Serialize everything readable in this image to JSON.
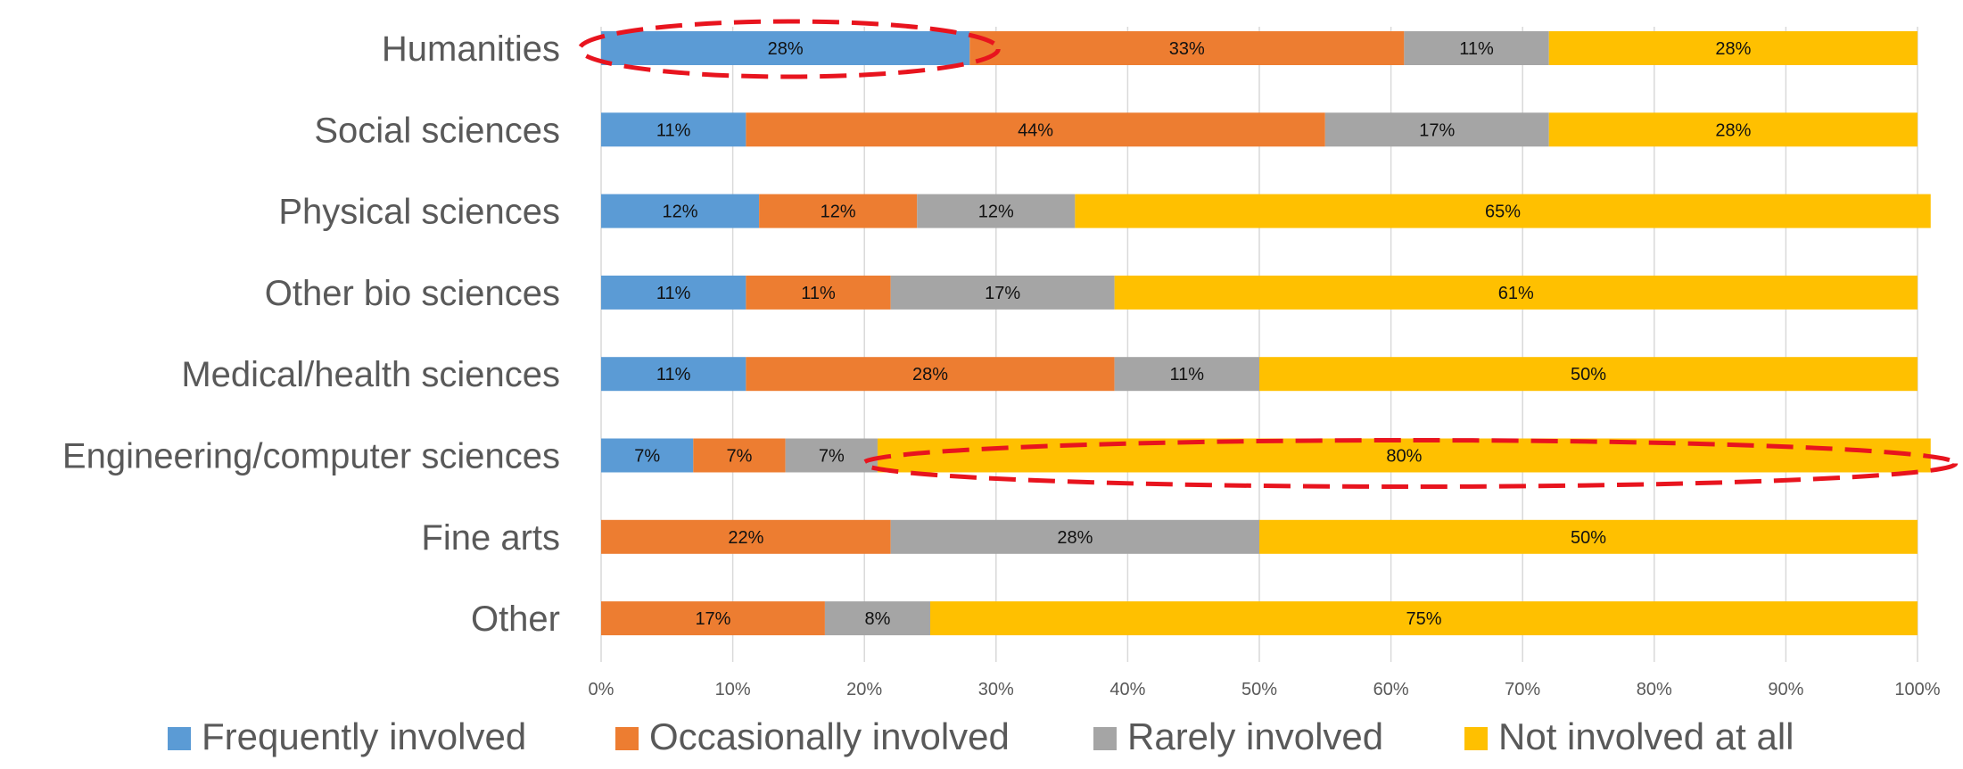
{
  "chart_data": {
    "type": "bar",
    "orientation": "horizontal",
    "stacked": true,
    "categories": [
      "Humanities",
      "Social sciences",
      "Physical sciences",
      "Other bio sciences",
      "Medical/health sciences",
      "Engineering/computer sciences",
      "Fine arts",
      "Other"
    ],
    "series": [
      {
        "name": "Frequently involved",
        "color": "#5b9bd5",
        "values": [
          28,
          11,
          12,
          11,
          11,
          7,
          0,
          0
        ]
      },
      {
        "name": "Occasionally involved",
        "color": "#ed7d31",
        "values": [
          33,
          44,
          12,
          11,
          28,
          7,
          22,
          17
        ]
      },
      {
        "name": "Rarely involved",
        "color": "#a5a5a5",
        "values": [
          11,
          17,
          12,
          17,
          11,
          7,
          28,
          8
        ]
      },
      {
        "name": "Not involved at all",
        "color": "#ffc000",
        "values": [
          28,
          28,
          65,
          61,
          50,
          80,
          50,
          75
        ]
      }
    ],
    "segment_labels": [
      [
        "28%",
        "33%",
        "11%",
        "28%"
      ],
      [
        "11%",
        "44%",
        "17%",
        "28%"
      ],
      [
        "12%",
        "12%",
        "12%",
        "65%"
      ],
      [
        "11%",
        "11%",
        "17%",
        "61%"
      ],
      [
        "11%",
        "28%",
        "11%",
        "50%"
      ],
      [
        "7%",
        "7%",
        "7%",
        "80%"
      ],
      [
        "",
        "22%",
        "28%",
        "50%"
      ],
      [
        "",
        "17%",
        "8%",
        "75%"
      ]
    ],
    "xlim": [
      0,
      100
    ],
    "x_ticks": [
      "0%",
      "10%",
      "20%",
      "30%",
      "40%",
      "50%",
      "60%",
      "70%",
      "80%",
      "90%",
      "100%"
    ],
    "grid": true,
    "legend_position": "bottom",
    "annotations": [
      {
        "type": "dashed-ellipse",
        "color": "#e8141e",
        "category": "Humanities",
        "series": "Frequently involved"
      },
      {
        "type": "dashed-ellipse",
        "color": "#e8141e",
        "category": "Engineering/computer sciences",
        "series": "Not involved at all"
      }
    ]
  }
}
